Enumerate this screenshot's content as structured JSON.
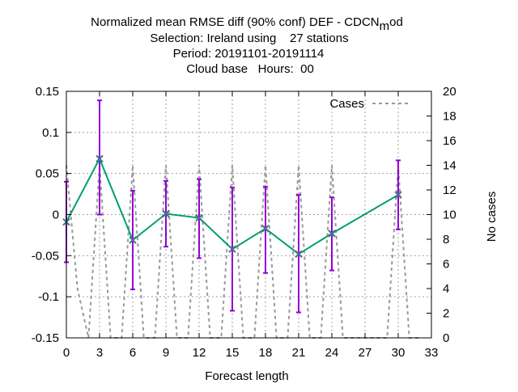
{
  "chart_data": {
    "type": "line",
    "title_lines": [
      "Normalized mean RMSE diff (90% conf) DEF - CDCN",
      "Selection: Ireland using    27 stations",
      "Period: 20191101-20191114",
      "Cloud base   Hours:  00"
    ],
    "title_subscript": "m",
    "title_suffix": "od",
    "xlabel": "Forecast length",
    "ylabel": "",
    "y2label": "No cases",
    "xlim": [
      0,
      33
    ],
    "ylim": [
      -0.15,
      0.15
    ],
    "y2lim": [
      0,
      20
    ],
    "xticks": [
      0,
      3,
      6,
      9,
      12,
      15,
      18,
      21,
      24,
      27,
      30,
      33
    ],
    "yticks": [
      -0.15,
      -0.1,
      -0.05,
      0,
      0.05,
      0.1,
      0.15
    ],
    "yticks_labels": [
      "-0.15",
      "-0.1",
      "-0.05",
      "0",
      "0.05",
      "0.1",
      "0.15"
    ],
    "y2ticks": [
      0,
      2,
      4,
      6,
      8,
      10,
      12,
      14,
      16,
      18,
      20
    ],
    "grid": true,
    "legend_position": "top-right",
    "legend": [
      "Cases"
    ],
    "series": [
      {
        "x": [
          0,
          3,
          6,
          9,
          12,
          15,
          18,
          21,
          24,
          30
        ],
        "y": [
          -0.009,
          0.068,
          -0.031,
          0.001,
          -0.004,
          -0.042,
          -0.017,
          -0.048,
          -0.023,
          0.024
        ],
        "err_low": [
          -0.058,
          0.0,
          -0.091,
          -0.039,
          -0.053,
          -0.117,
          -0.071,
          -0.119,
          -0.068,
          -0.018
        ],
        "err_high": [
          0.04,
          0.139,
          0.029,
          0.041,
          0.043,
          0.033,
          0.034,
          0.024,
          0.021,
          0.066
        ],
        "color": "#009e73",
        "marker_color": "#4a6f8a",
        "errorbar_color": "#9400d3"
      },
      {
        "name": "Cases",
        "axis": "y2",
        "style": "dashed",
        "color": "#999999",
        "x": [
          0,
          1,
          2,
          3,
          4,
          5,
          6,
          7,
          8,
          9,
          10,
          11,
          12,
          13,
          14,
          15,
          16,
          17,
          18,
          19,
          20,
          21,
          22,
          23,
          24,
          25,
          26,
          27,
          28,
          29,
          30,
          31,
          32
        ],
        "values": [
          14,
          4,
          0,
          14,
          0,
          0,
          14,
          0,
          0,
          14,
          0,
          0,
          14,
          0,
          0,
          14,
          0,
          0,
          14,
          0,
          0,
          14,
          0,
          0,
          14,
          0,
          0,
          0,
          0,
          0,
          14,
          0,
          0
        ]
      }
    ]
  }
}
